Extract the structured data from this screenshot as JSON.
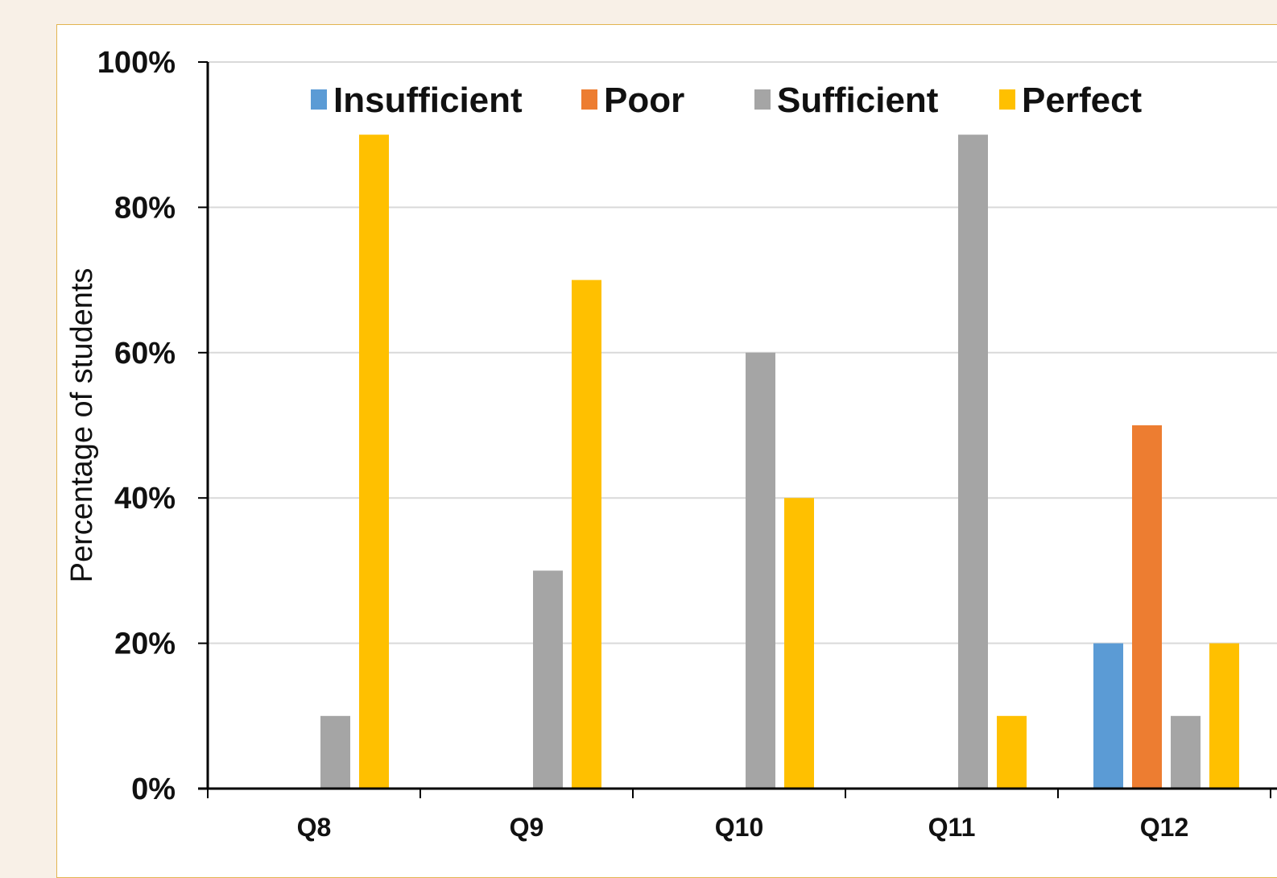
{
  "chart_data": {
    "type": "bar",
    "title": "",
    "xlabel": "",
    "ylabel": "Percentage of students",
    "categories": [
      "Q8",
      "Q9",
      "Q10",
      "Q11",
      "Q12"
    ],
    "series": [
      {
        "name": "Insufficient",
        "color": "#5b9bd5",
        "values": [
          0,
          0,
          0,
          0,
          20
        ]
      },
      {
        "name": "Poor",
        "color": "#ed7d31",
        "values": [
          0,
          0,
          0,
          0,
          50
        ]
      },
      {
        "name": "Sufficient",
        "color": "#a5a5a5",
        "values": [
          10,
          30,
          60,
          90,
          10
        ]
      },
      {
        "name": "Perfect",
        "color": "#ffc000",
        "values": [
          90,
          70,
          40,
          10,
          20
        ]
      }
    ],
    "ylim": [
      0,
      100
    ],
    "yticks": [
      0,
      20,
      40,
      60,
      80,
      100
    ],
    "ytick_labels": [
      "0%",
      "20%",
      "40%",
      "60%",
      "80%",
      "100%"
    ],
    "grid": true,
    "legend_position": "top"
  },
  "colors": {
    "page_background": "#f8f0e7",
    "frame_border": "#e3b450",
    "gridline": "#d9d9d9",
    "axis": "#000000"
  }
}
